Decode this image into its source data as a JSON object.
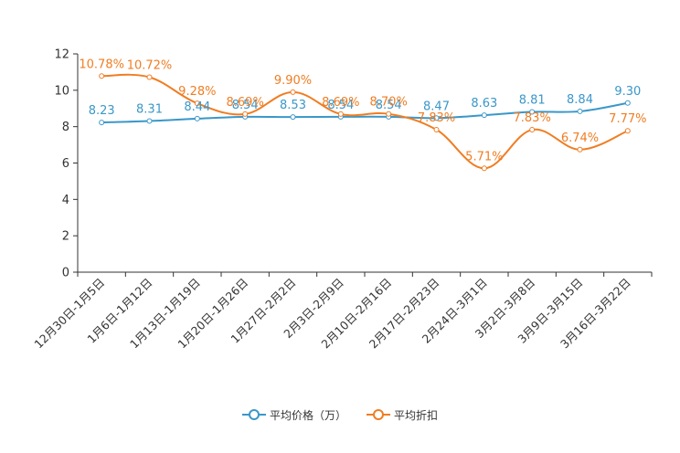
{
  "chart_data": {
    "type": "line",
    "title": "",
    "xlabel": "",
    "ylabel": "",
    "ylim": [
      0,
      12
    ],
    "yticks": [
      0,
      2,
      4,
      6,
      8,
      10,
      12
    ],
    "grid": false,
    "legend_position": "bottom",
    "categories": [
      "12月30日-1月5日",
      "1月6日-1月12日",
      "1月13日-1月19日",
      "1月20日-1月26日",
      "1月27日-2月2日",
      "2月3日-2月9日",
      "2月10日-2月16日",
      "2月17日-2月23日",
      "2月24日-3月1日",
      "3月2日-3月8日",
      "3月9日-3月15日",
      "3月16日-3月22日"
    ],
    "series": [
      {
        "name": "平均价格（万）",
        "color": "#3a97c9",
        "values": [
          8.23,
          8.31,
          8.44,
          8.54,
          8.53,
          8.54,
          8.54,
          8.47,
          8.63,
          8.81,
          8.84,
          9.3
        ],
        "labels": [
          "8.23",
          "8.31",
          "8.44",
          "8.54",
          "8.53",
          "8.54",
          "8.54",
          "8.47",
          "8.63",
          "8.81",
          "8.84",
          "9.30"
        ]
      },
      {
        "name": "平均折扣",
        "color": "#f07d22",
        "values": [
          10.78,
          10.72,
          9.28,
          8.69,
          9.9,
          8.69,
          8.7,
          7.83,
          5.71,
          7.83,
          6.74,
          7.77
        ],
        "labels": [
          "10.78%",
          "10.72%",
          "9.28%",
          "8.69%",
          "9.90%",
          "8.69%",
          "8.70%",
          "7.83%",
          "5.71%",
          "7.83%",
          "6.74%",
          "7.77%"
        ]
      }
    ]
  }
}
